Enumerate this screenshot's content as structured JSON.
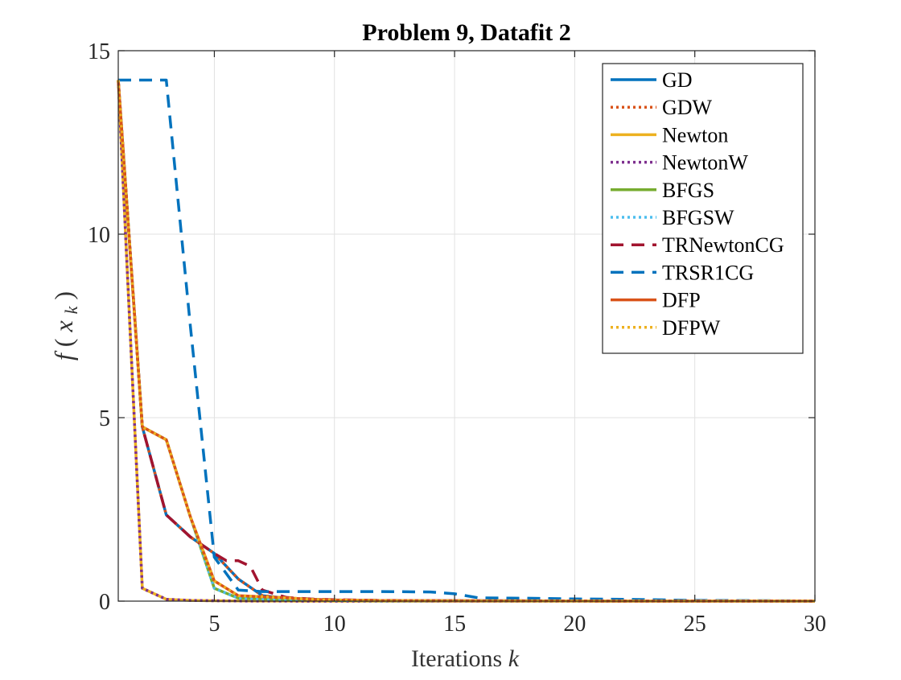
{
  "chart_data": {
    "type": "line",
    "title": "Problem 9, Datafit 2",
    "xlabel": "Iterations",
    "xlabel_var": "k",
    "ylabel_func": "f",
    "ylabel_arg": "x",
    "ylabel_sub": "k",
    "xlim": [
      1,
      30
    ],
    "ylim": [
      0,
      15
    ],
    "xticks": [
      5,
      10,
      15,
      20,
      25,
      30
    ],
    "yticks": [
      0,
      5,
      10,
      15
    ],
    "grid": true,
    "legend_position": "top-right",
    "series": [
      {
        "name": "GD",
        "color": "#0072BD",
        "dash": "solid",
        "x": [
          1,
          2,
          3,
          4,
          5,
          6,
          7,
          8,
          9,
          10,
          12,
          15,
          20,
          25,
          30
        ],
        "y": [
          14.2,
          4.75,
          2.35,
          1.75,
          1.3,
          0.6,
          0.15,
          0.08,
          0.05,
          0.03,
          0.015,
          0.01,
          0.005,
          0.003,
          0.002
        ]
      },
      {
        "name": "GDW",
        "color": "#D95319",
        "dash": "dot",
        "x": [
          1,
          2,
          3,
          4,
          5,
          6,
          7,
          8,
          9,
          10,
          12,
          15,
          20,
          25,
          30
        ],
        "y": [
          14.2,
          4.75,
          2.35,
          1.75,
          1.3,
          0.6,
          0.15,
          0.08,
          0.05,
          0.03,
          0.015,
          0.01,
          0.005,
          0.003,
          0.002
        ]
      },
      {
        "name": "Newton",
        "color": "#EDB120",
        "dash": "solid",
        "x": [
          1,
          2,
          3,
          4,
          5,
          6,
          7,
          8,
          9,
          10,
          12,
          15,
          20,
          25,
          30
        ],
        "y": [
          14.2,
          0.35,
          0.05,
          0.02,
          0.01,
          0.005,
          0.003,
          0.002,
          0.001,
          0.001,
          0.0,
          0.0,
          0.0,
          0.0,
          0.0
        ]
      },
      {
        "name": "NewtonW",
        "color": "#7E2F8E",
        "dash": "dot",
        "x": [
          1,
          2,
          3,
          4,
          5,
          6,
          7,
          8,
          9,
          10,
          12,
          15,
          20,
          25,
          30
        ],
        "y": [
          14.2,
          0.35,
          0.05,
          0.02,
          0.01,
          0.005,
          0.003,
          0.002,
          0.001,
          0.001,
          0.0,
          0.0,
          0.0,
          0.0,
          0.0
        ]
      },
      {
        "name": "BFGS",
        "color": "#77AC30",
        "dash": "solid",
        "x": [
          1,
          2,
          3,
          4,
          5,
          6,
          7,
          8,
          9,
          10,
          12,
          15,
          20,
          25,
          30
        ],
        "y": [
          14.2,
          4.75,
          4.4,
          2.3,
          0.35,
          0.08,
          0.06,
          0.05,
          0.03,
          0.02,
          0.01,
          0.005,
          0.003,
          0.002,
          0.001
        ]
      },
      {
        "name": "BFGSW",
        "color": "#4DBEEE",
        "dash": "dot",
        "x": [
          1,
          2,
          3,
          4,
          5,
          6,
          7,
          8,
          9,
          10,
          12,
          15,
          20,
          25,
          30
        ],
        "y": [
          14.2,
          4.75,
          4.4,
          2.3,
          0.35,
          0.08,
          0.06,
          0.05,
          0.03,
          0.02,
          0.01,
          0.005,
          0.003,
          0.002,
          0.001
        ]
      },
      {
        "name": "TRNewtonCG",
        "color": "#A2142F",
        "dash": "dash",
        "x": [
          1,
          2,
          3,
          4,
          5,
          5.5,
          6,
          6.5,
          7,
          8,
          9,
          10,
          12,
          15,
          20,
          25,
          30
        ],
        "y": [
          14.2,
          4.75,
          2.35,
          1.75,
          1.3,
          1.1,
          1.1,
          0.95,
          0.3,
          0.1,
          0.06,
          0.04,
          0.02,
          0.01,
          0.005,
          0.003,
          0.002
        ]
      },
      {
        "name": "TRSR1CG",
        "color": "#0072BD",
        "dash": "dash",
        "x": [
          1,
          2,
          3,
          4,
          5,
          6,
          7,
          8,
          10,
          12,
          14,
          15,
          16,
          18,
          20,
          22,
          25,
          28,
          30
        ],
        "y": [
          14.2,
          14.2,
          14.2,
          7.5,
          1.2,
          0.3,
          0.26,
          0.26,
          0.26,
          0.26,
          0.25,
          0.2,
          0.09,
          0.08,
          0.06,
          0.05,
          0.02,
          0.01,
          0.005
        ]
      },
      {
        "name": "DFP",
        "color": "#D95319",
        "dash": "solid",
        "x": [
          1,
          2,
          3,
          4,
          5,
          6,
          7,
          8,
          9,
          10,
          12,
          15,
          20,
          25,
          30
        ],
        "y": [
          14.2,
          4.75,
          4.4,
          2.3,
          0.55,
          0.15,
          0.12,
          0.09,
          0.05,
          0.03,
          0.015,
          0.01,
          0.005,
          0.003,
          0.002
        ]
      },
      {
        "name": "DFPW",
        "color": "#EDB120",
        "dash": "dot",
        "x": [
          1,
          2,
          3,
          4,
          5,
          6,
          7,
          8,
          9,
          10,
          12,
          15,
          20,
          25,
          30
        ],
        "y": [
          14.2,
          4.75,
          4.4,
          2.3,
          0.55,
          0.15,
          0.12,
          0.09,
          0.05,
          0.03,
          0.015,
          0.01,
          0.005,
          0.003,
          0.002
        ]
      }
    ]
  }
}
